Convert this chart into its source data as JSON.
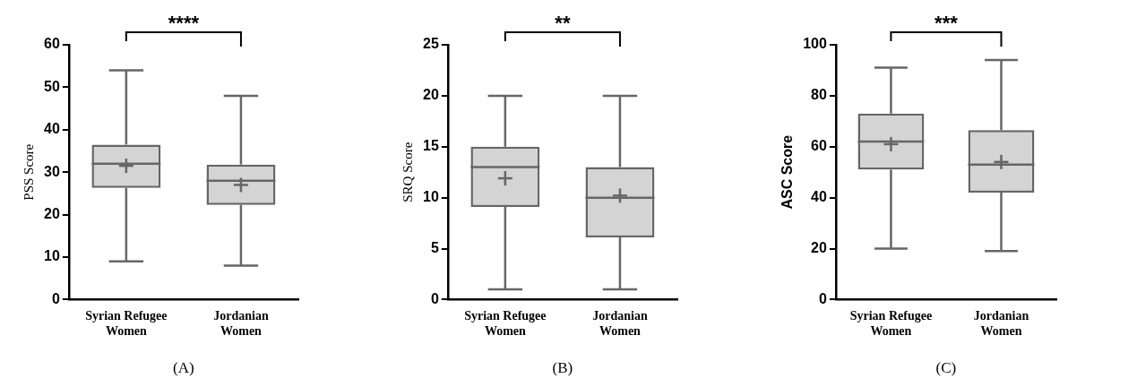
{
  "chart_data": [
    {
      "type": "box",
      "ylabel": "PSS Score",
      "categories": [
        "Syrian Refugee Women",
        "Jordanian Women"
      ],
      "color": "#666666",
      "ylim": [
        0,
        60
      ],
      "yticks": [
        0,
        10,
        20,
        30,
        40,
        50,
        60
      ],
      "grid": false,
      "boxes": [
        {
          "low": 9,
          "q1": 26.3,
          "median": 32,
          "q3": 36.5,
          "high": 54,
          "mean": 31.5
        },
        {
          "low": 8,
          "q1": 22.3,
          "median": 28,
          "q3": 31.8,
          "high": 48,
          "mean": 27
        }
      ],
      "annotations": [
        "****",
        "(A)"
      ]
    },
    {
      "type": "box",
      "ylabel": "SRQ Score",
      "categories": [
        "Syrian Refugee Women",
        "Jordanian Women"
      ],
      "color": "#666666",
      "ylim": [
        0,
        25
      ],
      "yticks": [
        0,
        5,
        10,
        15,
        20,
        25
      ],
      "grid": false,
      "boxes": [
        {
          "low": 1,
          "q1": 9.1,
          "median": 13,
          "q3": 15,
          "high": 20,
          "mean": 11.9
        },
        {
          "low": 1,
          "q1": 6.1,
          "median": 10,
          "q3": 13,
          "high": 20,
          "mean": 10.2
        }
      ],
      "annotations": [
        "**",
        "(B)"
      ]
    },
    {
      "type": "box",
      "ylabel": "ASC Score",
      "categories": [
        "Syrian Refugee Women",
        "Jordanian Women"
      ],
      "color": "#666666",
      "ylim": [
        0,
        100
      ],
      "yticks": [
        0,
        20,
        40,
        60,
        80,
        100
      ],
      "grid": false,
      "boxes": [
        {
          "low": 20,
          "q1": 51,
          "median": 62,
          "q3": 73,
          "high": 91,
          "mean": 61
        },
        {
          "low": 19,
          "q1": 42,
          "median": 53,
          "q3": 66.5,
          "high": 94,
          "mean": 54
        }
      ],
      "annotations": [
        "***",
        "(C)"
      ]
    }
  ]
}
